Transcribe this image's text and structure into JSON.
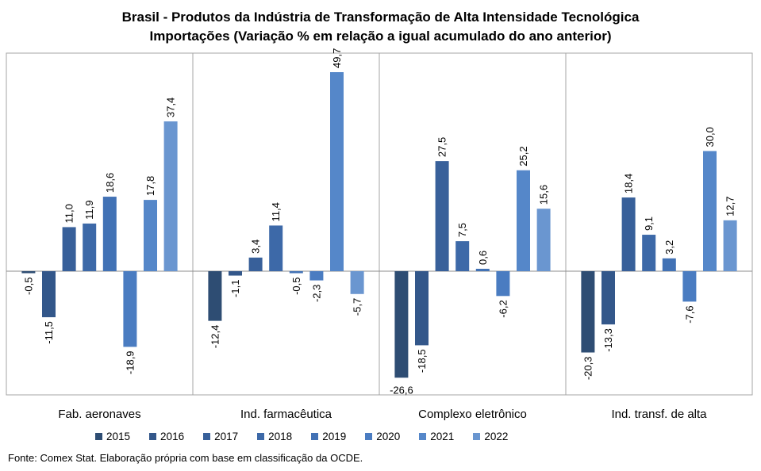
{
  "title": "Brasil - Produtos da Indústria de Transformação de Alta Intensidade Tecnológica",
  "subtitle": "Importações (Variação % em relação a igual acumulado do ano anterior)",
  "source": "Fonte: Comex Stat. Elaboração própria com base em classificação da OCDE.",
  "chart_data": {
    "type": "bar",
    "categories": [
      "Fab. aeronaves",
      "Ind. farmacêutica",
      "Complexo eletrônico",
      "Ind. transf. de alta"
    ],
    "series": [
      {
        "name": "2015",
        "color": "#2e4d73",
        "values": [
          -0.5,
          -12.4,
          -26.6,
          -20.3
        ]
      },
      {
        "name": "2016",
        "color": "#33578a",
        "values": [
          -11.5,
          -1.1,
          -18.5,
          -13.3
        ]
      },
      {
        "name": "2017",
        "color": "#38609a",
        "values": [
          11.0,
          3.4,
          27.5,
          18.4
        ]
      },
      {
        "name": "2018",
        "color": "#3d69a8",
        "values": [
          11.9,
          11.4,
          7.5,
          9.1
        ]
      },
      {
        "name": "2019",
        "color": "#4272b5",
        "values": [
          18.6,
          -0.5,
          0.6,
          3.2
        ]
      },
      {
        "name": "2020",
        "color": "#4a7cc1",
        "values": [
          -18.9,
          -2.3,
          -6.2,
          -7.6
        ]
      },
      {
        "name": "2021",
        "color": "#5587c9",
        "values": [
          17.8,
          49.7,
          25.2,
          30.0
        ]
      },
      {
        "name": "2022",
        "color": "#6a96d0",
        "values": [
          37.4,
          -5.7,
          15.6,
          12.7
        ]
      }
    ],
    "value_labels": "vertical, one decimal, comma separator",
    "ylim": [
      -30,
      55
    ],
    "grid": false,
    "legend": "bottom"
  }
}
